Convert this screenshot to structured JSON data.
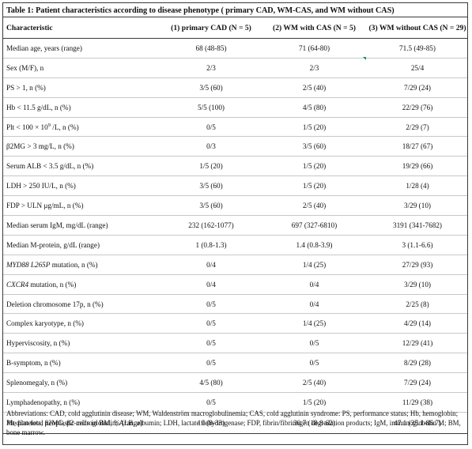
{
  "title": "Table 1: Patient characteristics according to disease phenotype ( primary CAD, WM-CAS, and WM without CAS)",
  "header": [
    "Characteristic",
    "(1) primary CAD (N = 5)",
    "(2) WM with CAS (N = 5)",
    "(3) WM without CAS (N = 29)"
  ],
  "rows": [
    {
      "pre": "Median age, years (range)",
      "c1": "68 (48-85)",
      "c2": "71 (64-80)",
      "c3": "71.5 (49-85)"
    },
    {
      "pre": "Sex (M/F), n",
      "c1": "2/3",
      "c2": "2/3",
      "c3": "25/4"
    },
    {
      "pre": "PS > 1, n (%)",
      "c1": "3/5 (60)",
      "c2": "2/5 (40)",
      "c3": "7/29 (24)"
    },
    {
      "pre": "Hb < 11.5 g/dL, n (%)",
      "c1": "5/5 (100)",
      "c2": "4/5 (80)",
      "c3": "22/29 (76)"
    },
    {
      "pre": "Plt < 100 × 10",
      "sup": "9",
      "post": " /L, n (%)",
      "c1": "0/5",
      "c2": "1/5 (20)",
      "c3": "2/29 (7)"
    },
    {
      "pre": "β2MG > 3 mg/L, n (%)",
      "c1": "0/3",
      "c2": "3/5 (60)",
      "c3": "18/27 (67)"
    },
    {
      "pre": "Serum ALB < 3.5 g/dL, n (%)",
      "c1": "1/5 (20)",
      "c2": "1/5 (20)",
      "c3": "19/29 (66)"
    },
    {
      "pre": "LDH > 250 IU/L, n (%)",
      "c1": "3/5 (60)",
      "c2": "1/5 (20)",
      "c3": "1/28 (4)"
    },
    {
      "pre": "FDP > ULN μg/mL, n (%)",
      "c1": "3/5 (60)",
      "c2": "2/5 (40)",
      "c3": "3/29 (10)"
    },
    {
      "pre": "Median serum IgM, mg/dL (range)",
      "c1": "232 (162-1077)",
      "c2": "697 (327-6810)",
      "c3": "3191 (341-7682)"
    },
    {
      "pre": "Median M-protein, g/dL (range)",
      "c1": "1 (0.8-1.3)",
      "c2": "1.4 (0.8-3.9)",
      "c3": "3 (1.1-6.6)"
    },
    {
      "ital": "MYD88 L265P",
      "pre": " mutation, n (%)",
      "c1": "0/4",
      "c2": "1/4 (25)",
      "c3": "27/29 (93)"
    },
    {
      "ital": "CXCR4",
      "pre": " mutation, n (%)",
      "c1": "0/4",
      "c2": "0/4",
      "c3": "3/29 (10)"
    },
    {
      "pre": "Deletion chromosome 17p, n (%)",
      "c1": "0/5",
      "c2": "0/4",
      "c3": "2/25 (8)"
    },
    {
      "pre": "Complex karyotype, n (%)",
      "c1": "0/5",
      "c2": "1/4 (25)",
      "c3": "4/29 (14)"
    },
    {
      "pre": "Hyperviscosity, n (%)",
      "c1": "0/5",
      "c2": "0/5",
      "c3": "12/29 (41)"
    },
    {
      "pre": "B-symptom, n (%)",
      "c1": "0/5",
      "c2": "0/5",
      "c3": "8/29 (28)"
    },
    {
      "pre": "Splenomegaly, n (%)",
      "c1": "4/5 (80)",
      "c2": "2/5 (40)",
      "c3": "7/29 (24)"
    },
    {
      "pre": "Lymphadenopathy, n (%)",
      "c1": "0/5",
      "c2": "1/5 (20)",
      "c3": "11/29 (38)"
    },
    {
      "pre": "Median total neoplastic cells in BM, % (range)",
      "c1": "19 (8-33)",
      "c2": "30.7 (18.8-62)",
      "c3": "47.1 (35.1-86.7)"
    }
  ],
  "footnote": "Abbreviations: CAD, cold agglutinin disease; WM, Waldenström macroglobulinemia; CAS, cold agglutinin syndrome: PS, performance status; Hb, hemoglobin; Plt, platelets; β2MG, β2-microglobulin; ALB, albumin; LDH, lactate dehydrogenase; FDP, fibrin/fibrinogen degradation products; IgM, immunoglobulin M; BM, bone marrow.",
  "colors": {
    "border": "#3a3a3a",
    "row_rule": "#c8c8c8",
    "marker": "#1f8a7a"
  }
}
